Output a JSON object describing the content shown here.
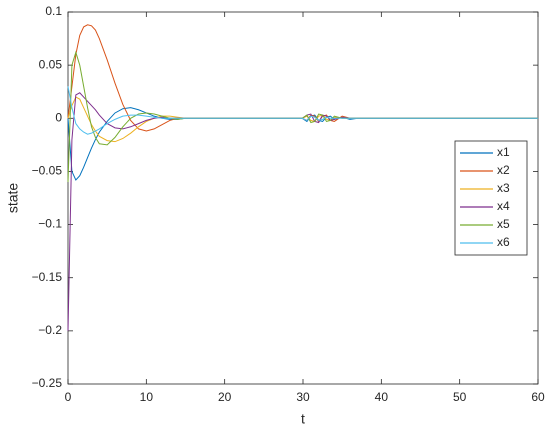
{
  "chart_data": {
    "type": "line",
    "xlabel": "t",
    "ylabel": "state",
    "x": [
      0,
      0.5,
      1,
      1.5,
      2,
      2.5,
      3,
      3.5,
      4,
      5,
      6,
      7,
      8,
      9,
      10,
      11,
      12,
      13,
      14,
      15,
      20,
      29.9,
      30.5,
      31,
      31.5,
      32,
      32.5,
      33,
      33.5,
      34,
      35,
      36,
      37,
      38,
      40,
      45,
      60
    ],
    "series": [
      {
        "name": "x1",
        "color": "#0072BD",
        "values": [
          0,
          -0.05,
          -0.058,
          -0.054,
          -0.046,
          -0.037,
          -0.028,
          -0.02,
          -0.013,
          -0.003,
          0.005,
          0.009,
          0.01,
          0.008,
          0.005,
          0.002,
          0,
          -0.001,
          -0.001,
          0,
          0,
          0,
          -0.003,
          0.002,
          0.003,
          -0.002,
          -0.003,
          0.001,
          0.002,
          -0.001,
          0.001,
          -0.001,
          0,
          0,
          0,
          0,
          0
        ]
      },
      {
        "name": "x2",
        "color": "#D95319",
        "values": [
          0,
          0.03,
          0.06,
          0.078,
          0.086,
          0.088,
          0.087,
          0.083,
          0.075,
          0.055,
          0.033,
          0.013,
          -0.002,
          -0.01,
          -0.012,
          -0.01,
          -0.006,
          -0.002,
          0,
          0,
          0,
          0,
          -0.002,
          0.003,
          0.002,
          -0.003,
          0.002,
          0.003,
          -0.002,
          -0.003,
          0.002,
          0,
          0,
          0,
          0,
          0,
          0
        ]
      },
      {
        "name": "x3",
        "color": "#EDB120",
        "values": [
          0,
          0.012,
          0.02,
          0.018,
          0.01,
          0.002,
          -0.006,
          -0.012,
          -0.017,
          -0.021,
          -0.022,
          -0.019,
          -0.014,
          -0.008,
          -0.003,
          0,
          0.002,
          0.002,
          0.001,
          0,
          0,
          0,
          0.002,
          -0.002,
          -0.003,
          0.002,
          0.003,
          -0.001,
          -0.002,
          0.001,
          0,
          0,
          0,
          0,
          0,
          0,
          0
        ]
      },
      {
        "name": "x4",
        "color": "#7E2F8E",
        "values": [
          -0.2,
          -0.02,
          0.022,
          0.024,
          0.02,
          0.016,
          0.012,
          0.008,
          0.003,
          -0.005,
          -0.009,
          -0.01,
          -0.008,
          -0.005,
          -0.002,
          0,
          0.001,
          0,
          0,
          0,
          0,
          0,
          0.003,
          0.004,
          -0.003,
          -0.004,
          0.003,
          0.002,
          -0.002,
          -0.001,
          0.001,
          0,
          0,
          0,
          0,
          0,
          0
        ]
      },
      {
        "name": "x5",
        "color": "#77AC30",
        "values": [
          -0.06,
          0.05,
          0.062,
          0.05,
          0.03,
          0.01,
          -0.008,
          -0.018,
          -0.024,
          -0.025,
          -0.018,
          -0.008,
          0,
          0.004,
          0.005,
          0.004,
          0.002,
          0,
          -0.001,
          0,
          0,
          0,
          0.003,
          -0.004,
          -0.003,
          0.004,
          0.003,
          -0.003,
          -0.002,
          0.002,
          0,
          0,
          0,
          0,
          0,
          0,
          0
        ]
      },
      {
        "name": "x6",
        "color": "#4DBEEE",
        "values": [
          0.03,
          0.01,
          -0.005,
          -0.01,
          -0.013,
          -0.015,
          -0.014,
          -0.012,
          -0.01,
          -0.005,
          -0.001,
          0.002,
          0.003,
          0.003,
          0.002,
          0.001,
          0,
          0,
          0,
          0,
          0,
          0,
          -0.002,
          0.002,
          0.001,
          -0.002,
          -0.001,
          0.001,
          0,
          0,
          0,
          0,
          0,
          0,
          0,
          0,
          0
        ]
      }
    ],
    "xlim": [
      0,
      60
    ],
    "xticks": [
      0,
      10,
      20,
      30,
      40,
      50,
      60
    ],
    "ylim": [
      -0.25,
      0.1
    ],
    "yticks": [
      {
        "value": -0.25,
        "label": "−0.25"
      },
      {
        "value": -0.2,
        "label": "−0.2"
      },
      {
        "value": -0.15,
        "label": "−0.15"
      },
      {
        "value": -0.1,
        "label": "−0.1"
      },
      {
        "value": -0.05,
        "label": "−0.05"
      },
      0,
      0.05,
      0.1
    ],
    "legend": "east"
  }
}
